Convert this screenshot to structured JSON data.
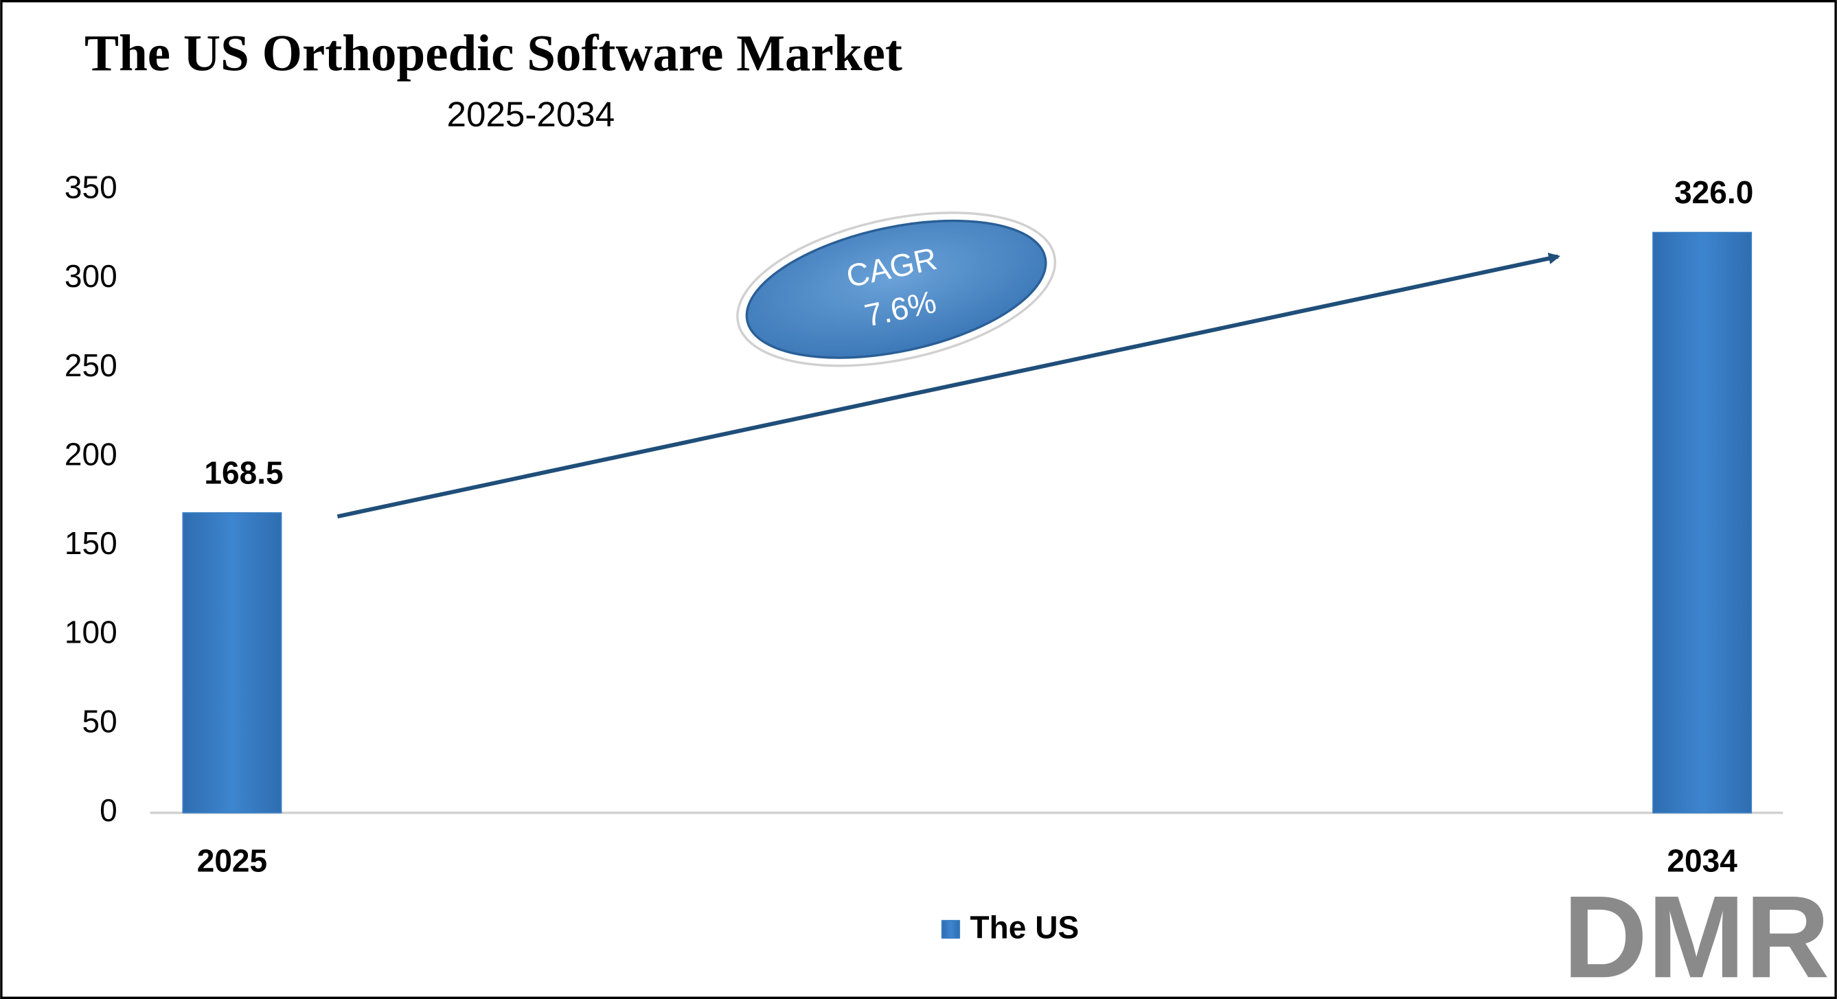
{
  "chart_data": {
    "type": "bar",
    "title": "The US Orthopedic Software Market",
    "subtitle": "2025-2034",
    "categories": [
      "2025",
      "2034"
    ],
    "series": [
      {
        "name": "The US",
        "color": "#3a7fc4",
        "values": [
          168.5,
          326.0
        ],
        "value_labels": [
          "168.5",
          "326.0"
        ]
      }
    ],
    "ylim": [
      0,
      350
    ],
    "yticks": [
      0,
      50,
      100,
      150,
      200,
      250,
      300,
      350
    ],
    "grid": false,
    "legend": "bottom",
    "annotation": {
      "label": "CAGR",
      "value": "7.6%"
    },
    "logo": "DMR"
  }
}
